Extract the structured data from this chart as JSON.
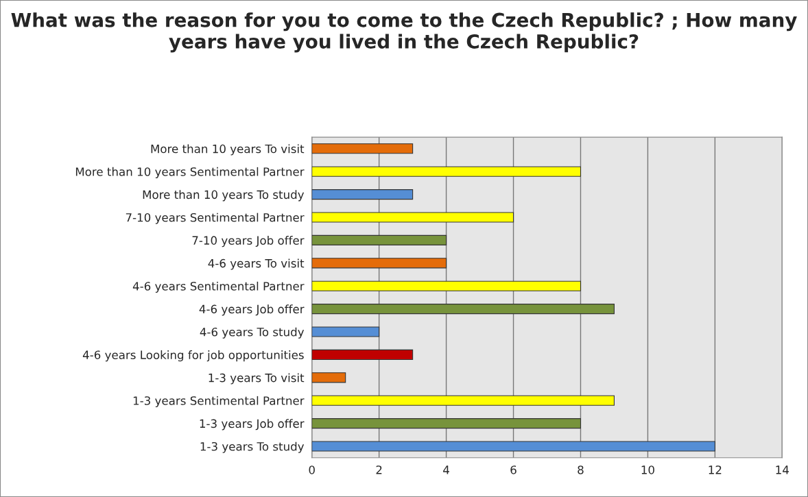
{
  "chart_data": {
    "type": "bar",
    "orientation": "horizontal",
    "title": "What was the reason for you to come to the Czech Republic? ; How many years have you lived in the Czech Republic?",
    "categories": [
      "More than 10 years To visit",
      "More than 10 years Sentimental Partner",
      "More than 10 years To study",
      "7-10 years Sentimental Partner",
      "7-10 years Job offer",
      "4-6 years To visit",
      "4-6 years Sentimental Partner",
      "4-6 years Job offer",
      "4-6 years To study",
      "4-6 years Looking for job opportunities",
      "1-3 years To visit",
      "1-3 years Sentimental Partner",
      "1-3 years Job offer",
      "1-3 years To study"
    ],
    "values": [
      3,
      8,
      3,
      6,
      4,
      4,
      8,
      9,
      2,
      3,
      1,
      9,
      8,
      12
    ],
    "colors": [
      "#e46c0a",
      "#ffff00",
      "#558ed5",
      "#ffff00",
      "#77933c",
      "#e46c0a",
      "#ffff00",
      "#77933c",
      "#558ed5",
      "#c00000",
      "#e46c0a",
      "#ffff00",
      "#77933c",
      "#558ed5"
    ],
    "xlim": [
      0,
      14
    ],
    "xticks": [
      0,
      2,
      4,
      6,
      8,
      10,
      12,
      14
    ],
    "grid": "x",
    "legend": false
  }
}
